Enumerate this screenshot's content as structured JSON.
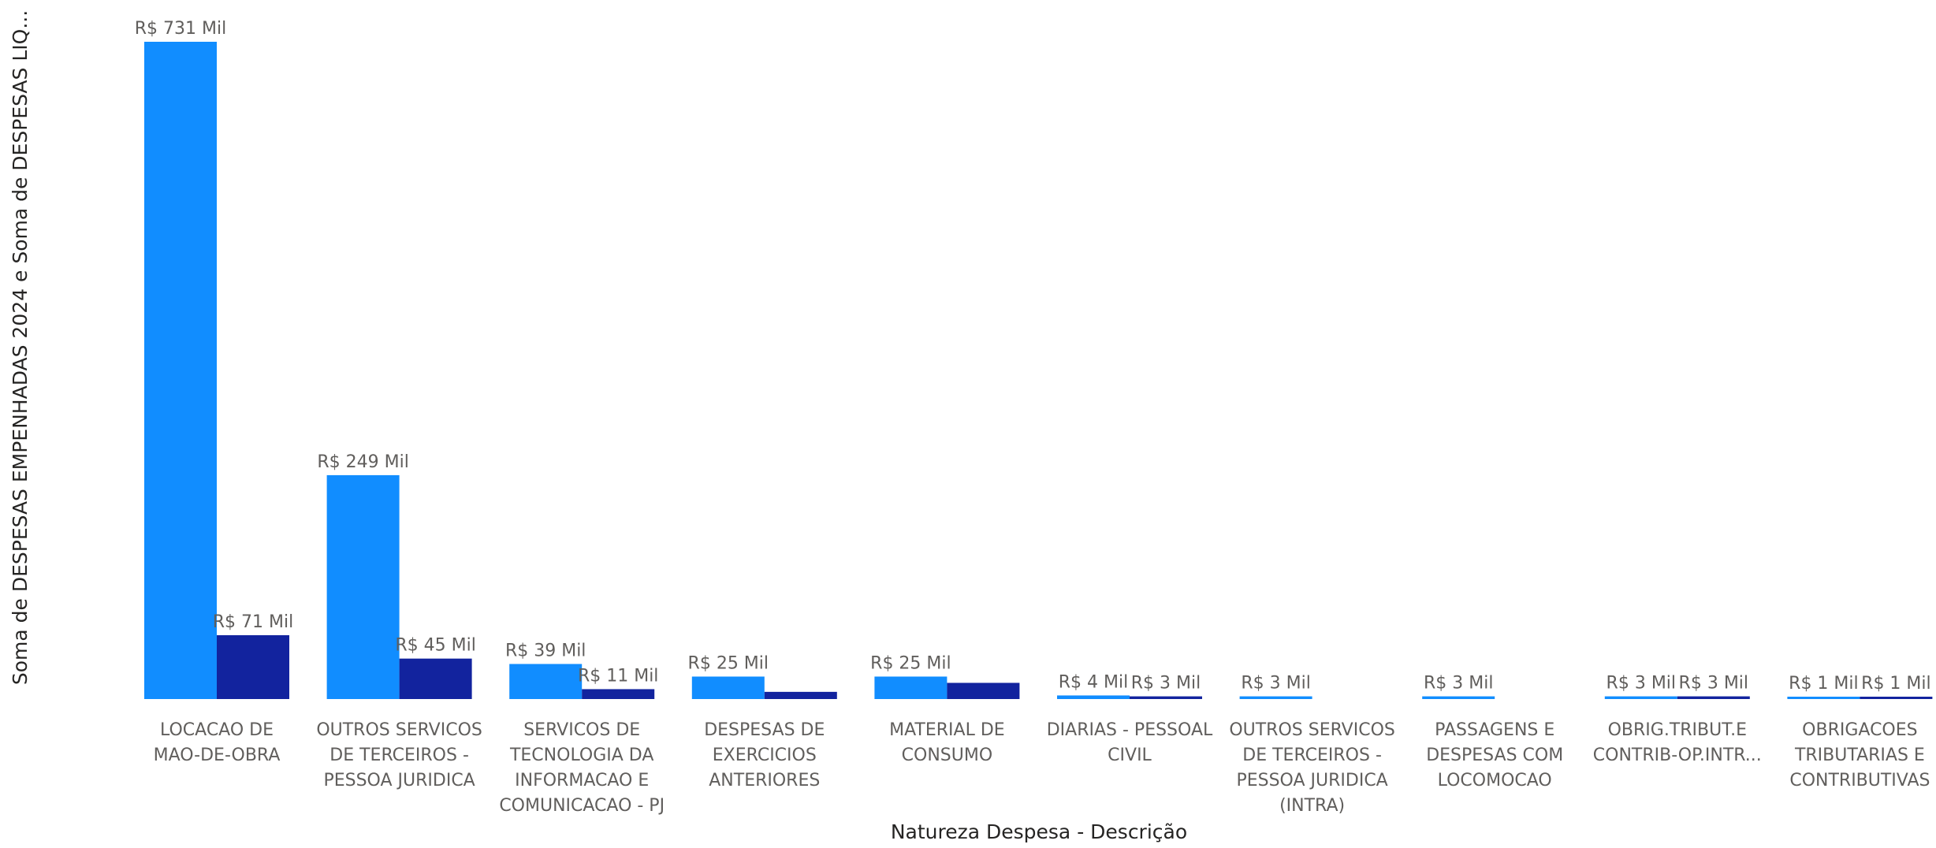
{
  "chart_data": {
    "type": "bar",
    "xlabel": "Natureza Despesa - Descrição",
    "ylabel": "Soma de DESPESAS EMPENHADAS 2024 e Soma de DESPESAS LIQ...",
    "categories": [
      [
        "LOCACAO DE",
        "MAO-DE-OBRA"
      ],
      [
        "OUTROS SERVICOS",
        "DE TERCEIROS -",
        "PESSOA JURIDICA"
      ],
      [
        "SERVICOS DE",
        "TECNOLOGIA DA",
        "INFORMACAO E",
        "COMUNICACAO - PJ"
      ],
      [
        "DESPESAS DE",
        "EXERCICIOS",
        "ANTERIORES"
      ],
      [
        "MATERIAL DE",
        "CONSUMO"
      ],
      [
        "DIARIAS - PESSOAL",
        "CIVIL"
      ],
      [
        "OUTROS SERVICOS",
        "DE TERCEIROS -",
        "PESSOA JURIDICA",
        "(INTRA)"
      ],
      [
        "PASSAGENS E",
        "DESPESAS COM",
        "LOCOMOCAO"
      ],
      [
        "OBRIG.TRIBUT.E",
        "CONTRIB-OP.INTR..."
      ],
      [
        "OBRIGACOES",
        "TRIBUTARIAS E",
        "CONTRIBUTIVAS"
      ]
    ],
    "series": [
      {
        "color": "#118dff",
        "values": [
          731,
          249,
          39,
          25,
          25,
          4,
          3,
          3,
          3,
          1
        ],
        "labels": [
          "R$ 731 Mil",
          "R$ 249 Mil",
          "R$ 39 Mil",
          "R$ 25 Mil",
          "R$ 25 Mil",
          "R$ 4 Mil",
          "R$ 3 Mil",
          "R$ 3 Mil",
          "R$ 3 Mil",
          "R$ 1 Mil"
        ]
      },
      {
        "color": "#12239e",
        "values": [
          71,
          45,
          11,
          8,
          18,
          3,
          0,
          0,
          3,
          1
        ],
        "labels": [
          "R$ 71 Mil",
          "R$ 45 Mil",
          "R$ 11 Mil",
          "",
          "",
          "R$ 3 Mil",
          "",
          "",
          "R$ 3 Mil",
          "R$ 1 Mil"
        ]
      }
    ],
    "ylim": [
      0,
      731
    ],
    "grid": false,
    "legend": "none"
  }
}
